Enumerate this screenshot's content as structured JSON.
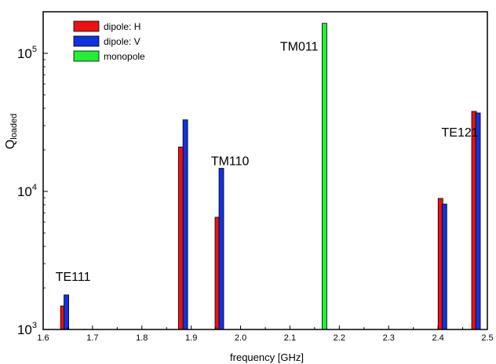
{
  "chart_data": {
    "type": "bar",
    "xlabel": "frequency [GHz]",
    "ylabel_main": "Q",
    "ylabel_sub": "loaded",
    "xlim": [
      1.6,
      2.5
    ],
    "ylim": [
      1000,
      200000
    ],
    "yscale": "log",
    "x_ticks": [
      "1.6",
      "1.7",
      "1.8",
      "1.9",
      "2.0",
      "2.1",
      "2.2",
      "2.3",
      "2.4",
      "2.5"
    ],
    "y_ticks": [
      {
        "value": 1000,
        "base": "10",
        "exp": "3"
      },
      {
        "value": 10000,
        "base": "10",
        "exp": "4"
      },
      {
        "value": 100000,
        "base": "10",
        "exp": "5"
      }
    ],
    "legend_position": "top-left",
    "series": [
      {
        "name": "dipole: H",
        "color": "#ee1111",
        "points": [
          [
            1.64,
            1480
          ],
          [
            1.879,
            21000
          ],
          [
            1.953,
            6500
          ],
          [
            2.405,
            8900
          ],
          [
            2.473,
            38000
          ]
        ]
      },
      {
        "name": "dipole: V",
        "color": "#1133dd",
        "points": [
          [
            1.647,
            1780
          ],
          [
            1.888,
            33000
          ],
          [
            1.961,
            14700
          ],
          [
            2.413,
            8100
          ],
          [
            2.481,
            37000
          ]
        ]
      },
      {
        "name": "monopole",
        "color": "#22ee33",
        "points": [
          [
            2.17,
            165000
          ]
        ]
      }
    ],
    "annotations": [
      {
        "text": "TE111",
        "x": 1.625,
        "y": 2250
      },
      {
        "text": "TM110",
        "x": 1.94,
        "y": 15500
      },
      {
        "text": "TM011",
        "x": 2.08,
        "y": 105000
      },
      {
        "text": "TE121",
        "x": 2.407,
        "y": 25000
      }
    ]
  }
}
